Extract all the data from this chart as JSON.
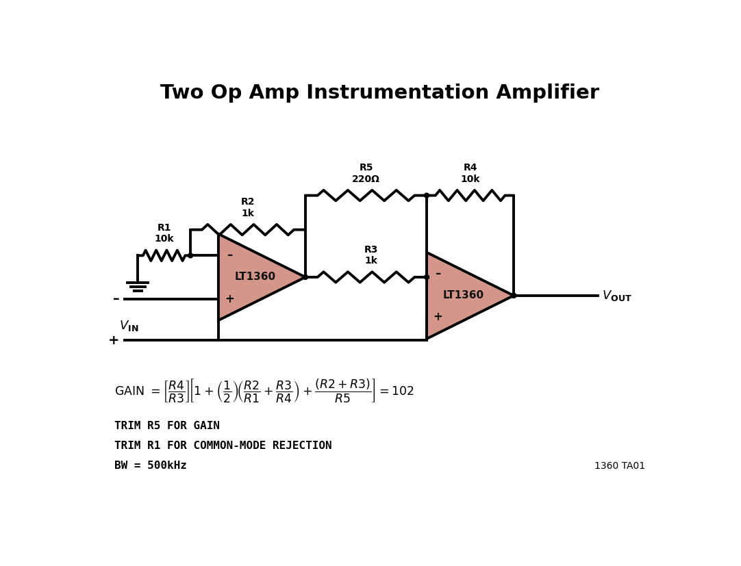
{
  "title": "Two Op Amp Instrumentation Amplifier",
  "title_fontsize": 21,
  "title_fontweight": "bold",
  "bg_color": "#ffffff",
  "line_color": "#000000",
  "line_width": 2.8,
  "op_amp_fill": "#d4968a",
  "op_amp_stroke": "#000000",
  "labels": {
    "R1": "R1\n10k",
    "R2": "R2\n1k",
    "R3": "R3\n1k",
    "R4": "R4\n10k",
    "R5": "R5\n220Ω",
    "LT1360_1": "LT1360",
    "LT1360_2": "LT1360",
    "trim1": "TRIM R5 FOR GAIN",
    "trim2": "TRIM R1 FOR COMMON-MODE REJECTION",
    "trim3": "BW = 500kHz",
    "ref": "1360 TA01"
  }
}
